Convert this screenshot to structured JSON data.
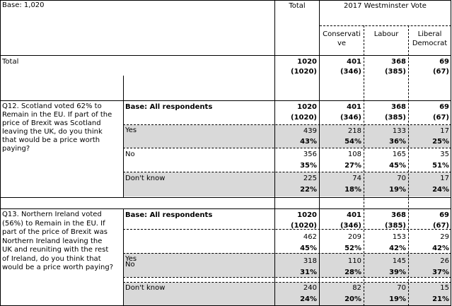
{
  "header": {
    "base_label": "Base: 1,020",
    "total_label": "Total",
    "vote_group": "2017 Westminster Vote",
    "columns": [
      {
        "l1": "Conservati",
        "l2": "ve"
      },
      {
        "l1": "Labour",
        "l2": ""
      },
      {
        "l1": "Liberal",
        "l2": "Democrat"
      }
    ]
  },
  "total_row": {
    "label": "Total",
    "weighted": [
      "1020",
      "401",
      "368",
      "69"
    ],
    "unweighted": [
      "(1020)",
      "(346)",
      "(385)",
      "(67)"
    ]
  },
  "q12": {
    "question": [
      "Q12. Scotland voted 62% to",
      "Remain in the EU. If part of the",
      "price of Brexit was Scotland",
      "leaving the UK, do you think",
      "that would be a price worth",
      "paying?"
    ],
    "base_label": "Base: All respondents",
    "base_weighted": [
      "1020",
      "401",
      "368",
      "69"
    ],
    "base_unweighted": [
      "(1020)",
      "(346)",
      "(385)",
      "(67)"
    ],
    "answers": [
      {
        "label": "Yes",
        "counts": [
          "439",
          "218",
          "133",
          "17"
        ],
        "pcts": [
          "43%",
          "54%",
          "36%",
          "25%"
        ]
      },
      {
        "label": "No",
        "counts": [
          "356",
          "108",
          "165",
          "35"
        ],
        "pcts": [
          "35%",
          "27%",
          "45%",
          "51%"
        ]
      },
      {
        "label": "Don't know",
        "counts": [
          "225",
          "74",
          "70",
          "17"
        ],
        "pcts": [
          "22%",
          "18%",
          "19%",
          "24%"
        ]
      }
    ]
  },
  "q13": {
    "question": [
      "Q13. Northern Ireland voted",
      "(56%) to Remain in the EU. If",
      "part of the price of Brexit was",
      "Northern Ireland leaving the",
      "UK and reuniting with the rest",
      "of Ireland, do you think that",
      "would be a price worth paying?"
    ],
    "base_label": "Base: All respondents",
    "base_weighted": [
      "1020",
      "401",
      "368",
      "69"
    ],
    "base_unweighted": [
      "(1020)",
      "(346)",
      "(385)",
      "(67)"
    ],
    "answers": [
      {
        "label": "Yes",
        "counts": [
          "462",
          "209",
          "153",
          "29"
        ],
        "pcts": [
          "45%",
          "52%",
          "42%",
          "42%"
        ]
      },
      {
        "label": "No",
        "counts": [
          "318",
          "110",
          "145",
          "26"
        ],
        "pcts": [
          "31%",
          "28%",
          "39%",
          "37%"
        ]
      },
      {
        "label": "Don't know",
        "counts": [
          "240",
          "82",
          "70",
          "15"
        ],
        "pcts": [
          "24%",
          "20%",
          "19%",
          "21%"
        ]
      }
    ]
  }
}
